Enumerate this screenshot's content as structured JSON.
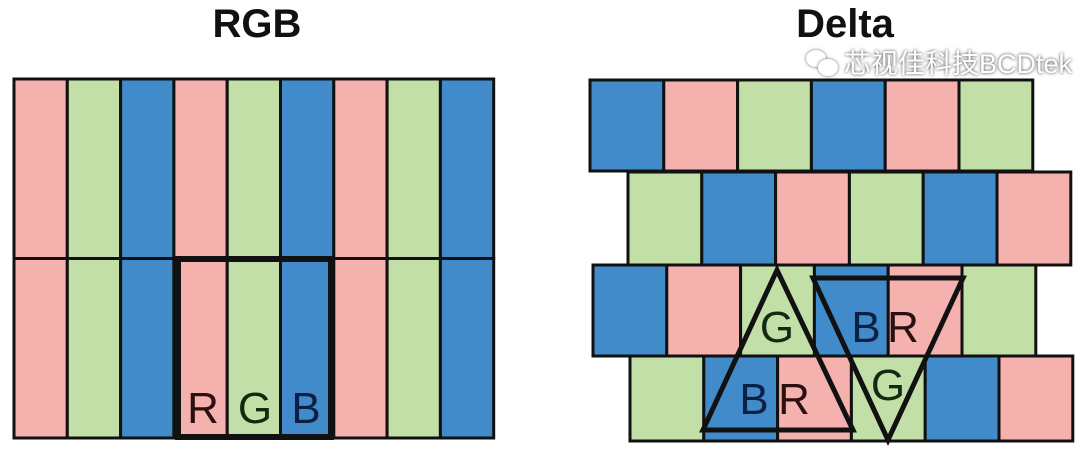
{
  "titles": {
    "left": "RGB",
    "right": "Delta"
  },
  "colors": {
    "R": "#f4b1ae",
    "G": "#c1dfa7",
    "B": "#428bca",
    "line": "#111111"
  },
  "rgb_diagram": {
    "rows": [
      [
        "R",
        "G",
        "B",
        "R",
        "G",
        "B",
        "R",
        "G",
        "B"
      ],
      [
        "R",
        "G",
        "B",
        "R",
        "G",
        "B",
        "R",
        "G",
        "B"
      ]
    ],
    "highlight_labels": [
      "R",
      "G",
      "B"
    ]
  },
  "delta_diagram": {
    "rows": [
      [
        "B",
        "R",
        "G",
        "B",
        "R",
        "G"
      ],
      [
        "G",
        "B",
        "R",
        "G",
        "B",
        "R"
      ],
      [
        "B",
        "R",
        "G",
        "B",
        "R",
        "G"
      ],
      [
        "G",
        "B",
        "R",
        "G",
        "B",
        "R"
      ]
    ],
    "up_triangle_labels": [
      "G",
      "B",
      "R"
    ],
    "down_triangle_labels": [
      "B",
      "R",
      "G"
    ]
  },
  "watermark": {
    "icon": "wechat-icon",
    "text": "芯视佳科技BCDtek"
  }
}
